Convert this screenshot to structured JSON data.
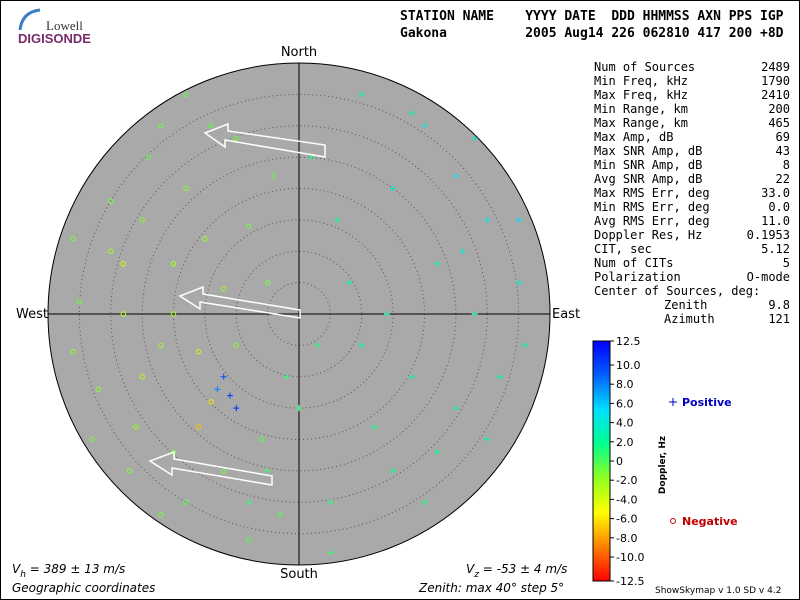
{
  "header": {
    "logo_top": "Lowell",
    "logo_bottom": "DIGISONDE",
    "line1": "STATION NAME    YYYY DATE  DDD HHMMSS AXN PPS IGP",
    "line2": "Gakona          2005 Aug14 226 062810 417 200 +8D"
  },
  "stats": [
    [
      "Num of Sources",
      "2489"
    ],
    [
      "Min Freq, kHz",
      "1790"
    ],
    [
      "Max Freq, kHz",
      "2410"
    ],
    [
      "Min Range, km",
      "200"
    ],
    [
      "Max Range, km",
      "465"
    ],
    [
      "Max Amp, dB",
      "69"
    ],
    [
      "Max SNR Amp, dB",
      "43"
    ],
    [
      "Min SNR Amp, dB",
      "8"
    ],
    [
      "Avg SNR Amp, dB",
      "22"
    ],
    [
      "Max RMS Err, deg",
      "33.0"
    ],
    [
      "Min RMS Err, deg",
      "0.0"
    ],
    [
      "Avg RMS Err, deg",
      "11.0"
    ],
    [
      "Doppler Res, Hz",
      "0.1953"
    ],
    [
      "CIT, sec",
      "5.12"
    ],
    [
      "Num of CITs",
      "5"
    ],
    [
      "Polarization",
      "O-mode"
    ]
  ],
  "center": {
    "title": "Center of Sources, deg:",
    "rows": [
      [
        "Zenith",
        "9.8"
      ],
      [
        "Azimuth",
        "121"
      ]
    ]
  },
  "footer": {
    "vh_v": "V",
    "vh_sub": "h",
    "vh_rest": " = 389 ± 13 m/s",
    "vz_v": "V",
    "vz_sub": "z",
    "vz_rest": " = -53 ± 4 m/s",
    "coords": "Geographic coordinates",
    "zenith": "Zenith: max 40°  step 5°",
    "version": "ShowSkymap v 1.0   SD v 4.2"
  },
  "chart_data": {
    "type": "scatter",
    "compass": {
      "north": "North",
      "south": "South",
      "west": "West",
      "east": "East"
    },
    "xlim": [
      -40,
      40
    ],
    "ylim": [
      -40,
      40
    ],
    "ring_step": 5,
    "series": [
      {
        "name": "Negative",
        "color": "#c00000",
        "marker": "circle",
        "x": [
          -30,
          -25,
          -20,
          -28,
          -22,
          -35,
          -18,
          -15,
          -24,
          -10,
          -32,
          -26,
          -20,
          -14,
          -16,
          -12,
          -8,
          -30,
          -36,
          -22,
          -27,
          -18,
          -12,
          -6,
          -28,
          -33,
          -20,
          -25,
          -16,
          -10,
          -5,
          -14,
          -3,
          -8,
          -36,
          -18,
          -4,
          -22
        ],
        "y": [
          10,
          15,
          8,
          0,
          -5,
          2,
          20,
          12,
          25,
          28,
          -12,
          -18,
          -22,
          -14,
          -6,
          4,
          14,
          18,
          -6,
          30,
          -25,
          -30,
          -25,
          -20,
          8,
          -20,
          0,
          -10,
          -18,
          -5,
          5,
          30,
          -32,
          -36,
          12,
          35,
          22,
          -32
        ],
        "doppler": [
          -2,
          -1.5,
          -2.5,
          -3,
          -2,
          -1,
          -1.5,
          -2,
          -0.5,
          -1,
          -1.5,
          -2,
          -1,
          -6,
          -3,
          -2,
          -1,
          -1,
          -2,
          -0.8,
          -1.5,
          -0.5,
          -1,
          -0.5,
          -3.5,
          -1,
          -2.2,
          -2.8,
          -7,
          -1.5,
          -1,
          -0.5,
          -0.5,
          -0.3,
          -1.2,
          -0.4,
          -0.6,
          -0.8
        ]
      },
      {
        "name": "Positive",
        "color": "#0000c0",
        "marker": "plus",
        "x": [
          20,
          25,
          30,
          35,
          28,
          22,
          15,
          10,
          18,
          25,
          30,
          15,
          5,
          0,
          8,
          12,
          -2,
          -5,
          20,
          32,
          26,
          18,
          10,
          2,
          6,
          -12,
          -11,
          -13,
          -10,
          3,
          14,
          36,
          22,
          -8,
          35,
          28,
          5
        ],
        "y": [
          30,
          22,
          15,
          5,
          0,
          8,
          20,
          -5,
          -10,
          -15,
          -20,
          -25,
          -30,
          -15,
          5,
          -18,
          -10,
          -25,
          -30,
          -10,
          10,
          32,
          35,
          25,
          15,
          -10,
          -13,
          -12,
          -15,
          -5,
          0,
          -5,
          -22,
          -30,
          15,
          28,
          -38
        ],
        "doppler": [
          4,
          5,
          4.5,
          3.5,
          3,
          3,
          3.5,
          2,
          2,
          2.5,
          2,
          1.5,
          1,
          1,
          2,
          1.5,
          0.5,
          0.3,
          1.5,
          3,
          4,
          3,
          2,
          1.5,
          1.8,
          9.5,
          10.5,
          8,
          11,
          1,
          2.5,
          3,
          1.8,
          0.5,
          5.5,
          4,
          0.5
        ]
      }
    ],
    "colorbar": {
      "label": "Doppler, Hz",
      "lim": [
        -12.5,
        12.5
      ],
      "ticks": [
        12.5,
        {
          "value": 10,
          "label": "10.0"
        },
        {
          "value": 8,
          "label": "8.0"
        },
        {
          "value": 6,
          "label": "6.0"
        },
        {
          "value": 4,
          "label": "4.0"
        },
        {
          "value": 2,
          "label": "2.0"
        },
        0,
        {
          "value": -2,
          "label": "-2.0"
        },
        {
          "value": -4,
          "label": "-4.0"
        },
        {
          "value": -6,
          "label": "-6.0"
        },
        {
          "value": -8,
          "label": "-8.0"
        },
        {
          "value": -10,
          "label": "-10.0"
        },
        -12.5
      ],
      "colors": [
        "#0000ff",
        "#0060ff",
        "#00e0ff",
        "#00ff90",
        "#90ff20",
        "#ffff00",
        "#ff8000",
        "#ff0000"
      ]
    }
  }
}
